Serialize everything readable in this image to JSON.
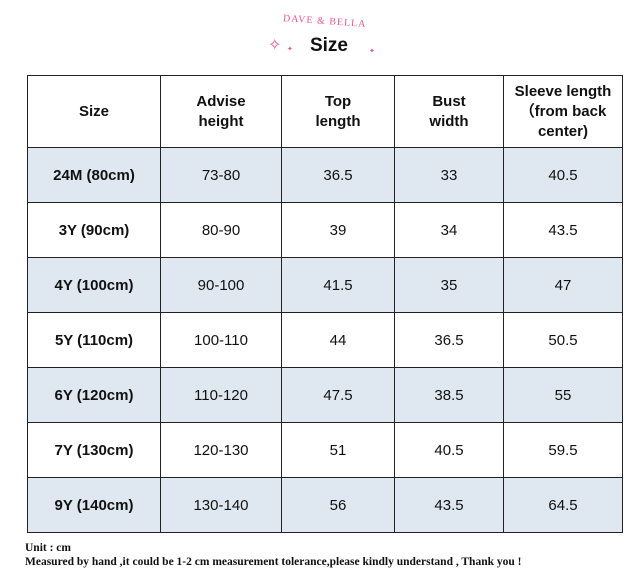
{
  "header": {
    "brand": "DAVE & BELLA",
    "title": "Size"
  },
  "table": {
    "columns": [
      "Size",
      "Advise\nheight",
      "Top\nlength",
      "Bust\nwidth",
      "Sleeve length\n（from back\ncenter)"
    ],
    "rows": [
      [
        "24M (80cm)",
        "73-80",
        "36.5",
        "33",
        "40.5"
      ],
      [
        "3Y (90cm)",
        "80-90",
        "39",
        "34",
        "43.5"
      ],
      [
        "4Y (100cm)",
        "90-100",
        "41.5",
        "35",
        "47"
      ],
      [
        "5Y (110cm)",
        "100-110",
        "44",
        "36.5",
        "50.5"
      ],
      [
        "6Y (120cm)",
        "110-120",
        "47.5",
        "38.5",
        "55"
      ],
      [
        "7Y (130cm)",
        "120-130",
        "51",
        "40.5",
        "59.5"
      ],
      [
        "9Y (140cm)",
        "130-140",
        "56",
        "43.5",
        "64.5"
      ]
    ]
  },
  "footer": {
    "unit": "Unit : cm",
    "note": "Measured by hand ,it could be 1-2 cm measurement tolerance,please kindly understand , Thank you !"
  },
  "colors": {
    "accent_pink": "#e8548a",
    "row_shade": "#dfe8f1",
    "border": "#222222"
  },
  "icons": {
    "sparkle": "sparkle-icon"
  }
}
